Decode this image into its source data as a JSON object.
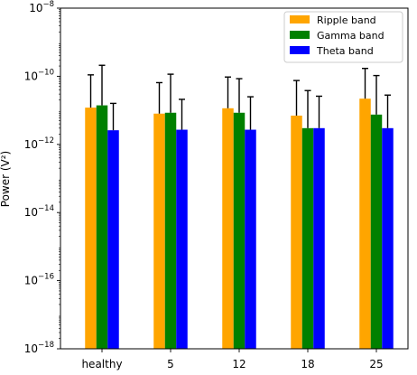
{
  "chart_data": {
    "type": "bar",
    "title": "",
    "xlabel": "",
    "ylabel": "Power (V²)",
    "yscale": "log",
    "ylim": [
      1e-18,
      1e-08
    ],
    "grid": false,
    "legend_position": "top-right",
    "categories": [
      "healthy",
      "5",
      "12",
      "18",
      "25"
    ],
    "series": [
      {
        "name": "Ripple band",
        "color": "#ffa500",
        "values": [
          1.2e-11,
          8e-12,
          1.15e-11,
          7e-12,
          2.2e-11
        ],
        "error_upper": [
          1.1e-10,
          6.5e-11,
          9.5e-11,
          7.5e-11,
          1.7e-10
        ]
      },
      {
        "name": "Gamma band",
        "color": "#008000",
        "values": [
          1.4e-11,
          8.5e-12,
          8.5e-12,
          3e-12,
          7.5e-12
        ],
        "error_upper": [
          2.1e-10,
          1.15e-10,
          8.5e-11,
          3.8e-11,
          1.05e-10
        ]
      },
      {
        "name": "Theta band",
        "color": "#0000ff",
        "values": [
          2.6e-12,
          2.7e-12,
          2.7e-12,
          3e-12,
          3e-12
        ],
        "error_upper": [
          1.6e-11,
          2.1e-11,
          2.5e-11,
          2.6e-11,
          2.8e-11
        ]
      }
    ],
    "yticks": [
      {
        "value": 1e-18,
        "base": "10",
        "exponent": "−18"
      },
      {
        "value": 1e-16,
        "base": "10",
        "exponent": "−16"
      },
      {
        "value": 1e-14,
        "base": "10",
        "exponent": "−14"
      },
      {
        "value": 1e-12,
        "base": "10",
        "exponent": "−12"
      },
      {
        "value": 1e-10,
        "base": "10",
        "exponent": "−10"
      },
      {
        "value": 1e-08,
        "base": "10",
        "exponent": "−8"
      }
    ]
  }
}
